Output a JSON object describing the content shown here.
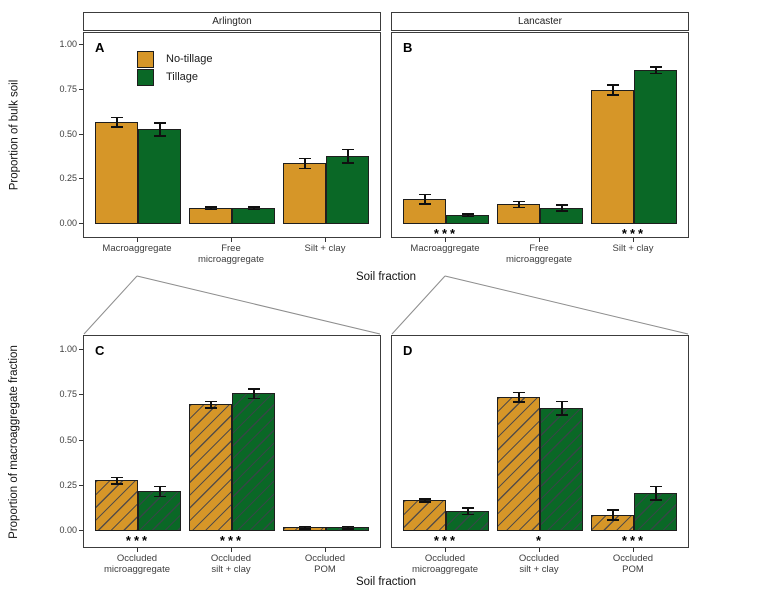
{
  "figure": {
    "facets": [
      "Arlington",
      "Lancaster"
    ],
    "x_axis_label": "Soil fraction",
    "y_axis_label_top": "Proportion of bulk soil",
    "y_axis_label_bottom": "Proportion of macroaggregate fraction",
    "y_tick_labels": [
      "0.00",
      "0.25",
      "0.50",
      "0.75",
      "1.00"
    ]
  },
  "legend": {
    "items": [
      {
        "label": "No-tillage",
        "color": "#D69628"
      },
      {
        "label": "Tillage",
        "color": "#0A6826"
      }
    ]
  },
  "colors": {
    "bar_outline": "#1e1e1e",
    "panel_border": "#3c3c3c",
    "hatch_line": "rgba(62,64,76,0.85)",
    "error_bar": "#101010",
    "connector_line": "#8c8c8c"
  },
  "chart_data": [
    {
      "panel_label": "A",
      "facet": "Arlington",
      "type": "bar",
      "ylabel": "Proportion of bulk soil",
      "xlabel": "Soil fraction",
      "ylim": [
        0,
        1
      ],
      "yticks": [
        0,
        0.25,
        0.5,
        0.75,
        1
      ],
      "grid": false,
      "hatched": false,
      "legend_position": "inside top-left",
      "categories": [
        [
          "Macroaggregate"
        ],
        [
          "Free",
          "microaggregate"
        ],
        [
          "Silt + clay"
        ]
      ],
      "series": [
        {
          "name": "No-tillage",
          "values": [
            0.57,
            0.09,
            0.34
          ],
          "errors": [
            0.03,
            0.01,
            0.03
          ]
        },
        {
          "name": "Tillage",
          "values": [
            0.53,
            0.09,
            0.38
          ],
          "errors": [
            0.04,
            0.01,
            0.04
          ]
        }
      ],
      "significance": [
        "",
        "",
        ""
      ]
    },
    {
      "panel_label": "B",
      "facet": "Lancaster",
      "type": "bar",
      "ylabel": "Proportion of bulk soil",
      "xlabel": "Soil fraction",
      "ylim": [
        0,
        1
      ],
      "yticks": [
        0,
        0.25,
        0.5,
        0.75,
        1
      ],
      "grid": false,
      "hatched": false,
      "categories": [
        [
          "Macroaggregate"
        ],
        [
          "Free",
          "microaggregate"
        ],
        [
          "Silt + clay"
        ]
      ],
      "series": [
        {
          "name": "No-tillage",
          "values": [
            0.14,
            0.11,
            0.75
          ],
          "errors": [
            0.03,
            0.02,
            0.03
          ]
        },
        {
          "name": "Tillage",
          "values": [
            0.05,
            0.09,
            0.86
          ],
          "errors": [
            0.01,
            0.02,
            0.02
          ]
        }
      ],
      "significance": [
        "***",
        "",
        "***"
      ]
    },
    {
      "panel_label": "C",
      "facet": "Arlington",
      "type": "bar",
      "ylabel": "Proportion of macroaggregate fraction",
      "xlabel": "Soil fraction",
      "ylim": [
        0,
        1
      ],
      "yticks": [
        0,
        0.25,
        0.5,
        0.75,
        1
      ],
      "grid": false,
      "hatched": true,
      "categories": [
        [
          "Occluded",
          "microaggregate"
        ],
        [
          "Occluded",
          "silt + clay"
        ],
        [
          "Occluded",
          "POM"
        ]
      ],
      "series": [
        {
          "name": "No-tillage",
          "values": [
            0.28,
            0.7,
            0.02
          ],
          "errors": [
            0.02,
            0.02,
            0.01
          ]
        },
        {
          "name": "Tillage",
          "values": [
            0.22,
            0.76,
            0.02
          ],
          "errors": [
            0.03,
            0.03,
            0.01
          ]
        }
      ],
      "significance": [
        "***",
        "***",
        ""
      ]
    },
    {
      "panel_label": "D",
      "facet": "Lancaster",
      "type": "bar",
      "ylabel": "Proportion of macroaggregate fraction",
      "xlabel": "Soil fraction",
      "ylim": [
        0,
        1
      ],
      "yticks": [
        0,
        0.25,
        0.5,
        0.75,
        1
      ],
      "grid": false,
      "hatched": true,
      "categories": [
        [
          "Occluded",
          "microaggregate"
        ],
        [
          "Occluded",
          "silt + clay"
        ],
        [
          "Occluded",
          "POM"
        ]
      ],
      "series": [
        {
          "name": "No-tillage",
          "values": [
            0.17,
            0.74,
            0.09
          ],
          "errors": [
            0.01,
            0.03,
            0.03
          ]
        },
        {
          "name": "Tillage",
          "values": [
            0.11,
            0.68,
            0.21
          ],
          "errors": [
            0.02,
            0.04,
            0.04
          ]
        }
      ],
      "significance": [
        "***",
        "*",
        "***"
      ]
    }
  ]
}
